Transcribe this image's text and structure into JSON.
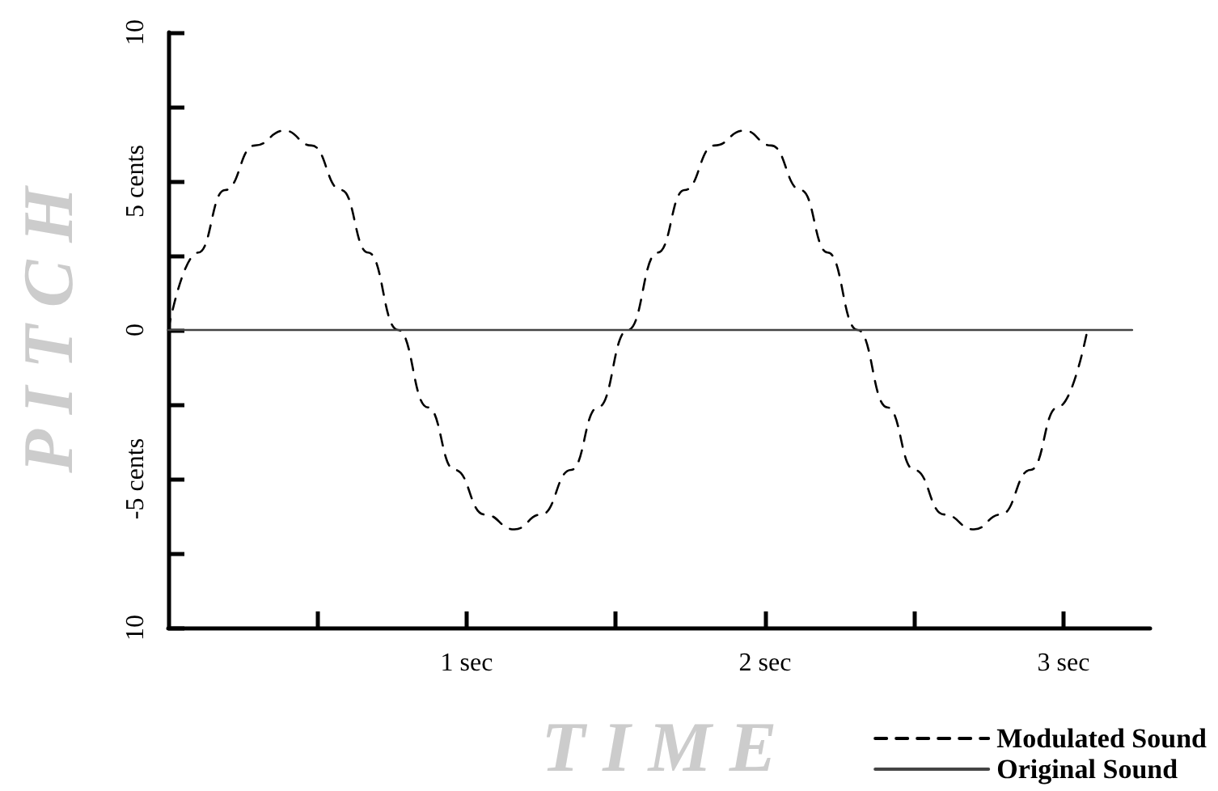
{
  "chart_data": {
    "type": "line",
    "xlabel": "T I M E",
    "ylabel": "P I T C H",
    "xlim": [
      0,
      3.29
    ],
    "ylim": [
      -10,
      10
    ],
    "xticks": [
      {
        "value": 0.5,
        "label": null
      },
      {
        "value": 1,
        "label": "1 sec"
      },
      {
        "value": 1.5,
        "label": null
      },
      {
        "value": 2,
        "label": "2 sec"
      },
      {
        "value": 2.5,
        "label": null
      },
      {
        "value": 3,
        "label": "3 sec"
      }
    ],
    "yticks": [
      {
        "value": -10,
        "label": "10"
      },
      {
        "value": -7.5,
        "label": null
      },
      {
        "value": -5,
        "label": "-5 cents"
      },
      {
        "value": -2.5,
        "label": null
      },
      0,
      {
        "value": 2.5,
        "label": null
      },
      {
        "value": 5,
        "label": "5 cents"
      },
      {
        "value": 7.5,
        "label": null
      },
      10
    ],
    "series": [
      {
        "name": "Modulated Sound",
        "color": "#000000",
        "line_style": "dashed",
        "x": [
          0,
          0.1,
          0.19,
          0.29,
          0.39,
          0.48,
          0.58,
          0.67,
          0.77,
          0.87,
          0.96,
          1.06,
          1.16,
          1.25,
          1.35,
          1.44,
          1.54,
          1.64,
          1.73,
          1.83,
          1.93,
          2.02,
          2.12,
          2.21,
          2.31,
          2.41,
          2.5,
          2.6,
          2.7,
          2.79,
          2.89,
          2.98,
          3.08
        ],
        "values": [
          0,
          2.6,
          4.7,
          6.2,
          6.7,
          6.2,
          4.7,
          2.6,
          0,
          -2.6,
          -4.7,
          -6.2,
          -6.7,
          -6.2,
          -4.7,
          -2.6,
          0,
          2.6,
          4.7,
          6.2,
          6.7,
          6.2,
          4.7,
          2.6,
          0,
          -2.6,
          -4.7,
          -6.2,
          -6.7,
          -6.2,
          -4.7,
          -2.6,
          0
        ]
      },
      {
        "name": "Original Sound",
        "color": "#444444",
        "line_style": "solid",
        "x": [
          0,
          3.23
        ],
        "values": [
          0,
          0
        ]
      }
    ],
    "marker": "none",
    "grid": false,
    "legend": "bottom right"
  }
}
